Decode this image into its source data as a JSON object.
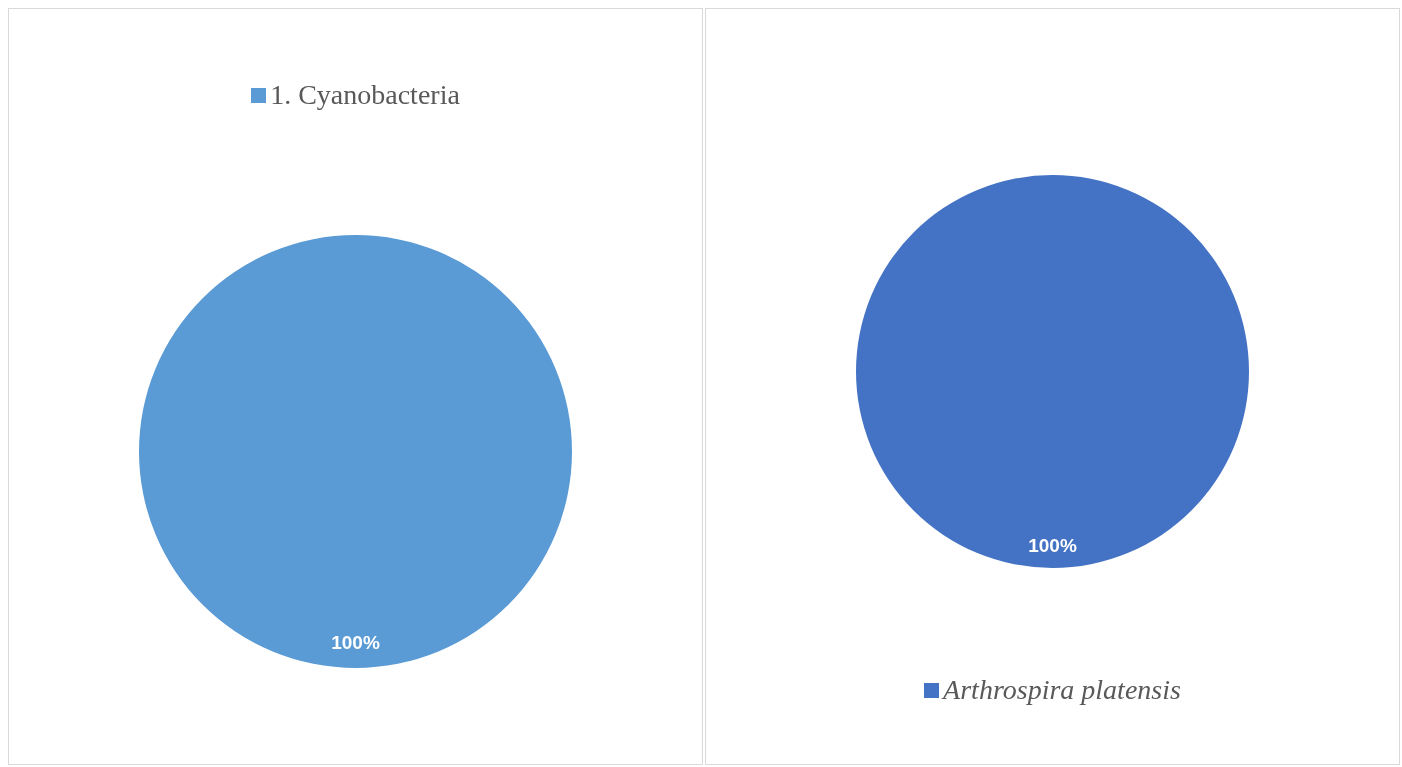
{
  "chart_data": [
    {
      "type": "pie",
      "categories": [
        "1. Cyanobacteria"
      ],
      "values": [
        100
      ],
      "colors": [
        "#5b9bd5"
      ],
      "value_labels": [
        "100%"
      ],
      "legend": "top"
    },
    {
      "type": "pie",
      "categories": [
        "Arthrospira platensis"
      ],
      "values": [
        100
      ],
      "colors": [
        "#4472c4"
      ],
      "value_labels": [
        "100%"
      ],
      "legend": "bottom"
    }
  ]
}
